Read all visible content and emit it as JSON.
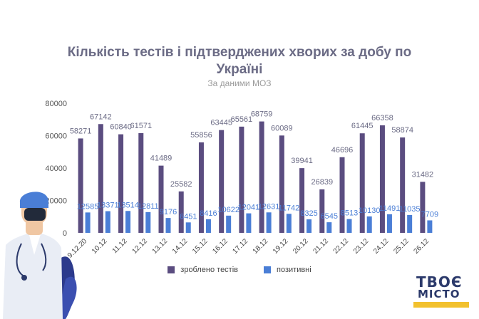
{
  "title_line1": "Кількість тестів і підтверджених хворих за добу по",
  "title_line2": "Україні",
  "subtitle": "За даними МОЗ",
  "legend": {
    "tests": "зроблено тестів",
    "positive": "позитивні"
  },
  "colors": {
    "tests": "#5b4d80",
    "positive": "#4a7ed6",
    "value_tests": "#6b6b85",
    "value_positive": "#4a7ed6"
  },
  "logo": {
    "line1": "ТВОЄ",
    "line2": "МІСТО"
  },
  "chart_data": {
    "type": "bar",
    "categories": [
      "9.12.20",
      "10.12",
      "11.12",
      "12.12",
      "13.12",
      "14.12",
      "15.12",
      "16.12",
      "17.12",
      "18.12",
      "19.12",
      "20.12",
      "21.12",
      "22.12",
      "23.12",
      "24.12",
      "25.12",
      "26.12"
    ],
    "series": [
      {
        "name": "зроблено тестів",
        "values": [
          58271,
          67142,
          60840,
          61571,
          41489,
          25582,
          55856,
          63445,
          65561,
          68759,
          60089,
          39941,
          26839,
          46696,
          61445,
          66358,
          58874,
          31482
        ]
      },
      {
        "name": "позитивні",
        "values": [
          12585,
          13371,
          13514,
          12811,
          9176,
          6451,
          8416,
          10622,
          12041,
          12631,
          11742,
          8325,
          6545,
          8513,
          10130,
          11491,
          11035,
          7709
        ]
      }
    ],
    "y_ticks": [
      "0",
      "20000",
      "40000",
      "60000",
      "80000"
    ],
    "ylim": [
      0,
      80000
    ],
    "grid": false,
    "legend_position": "bottom"
  }
}
